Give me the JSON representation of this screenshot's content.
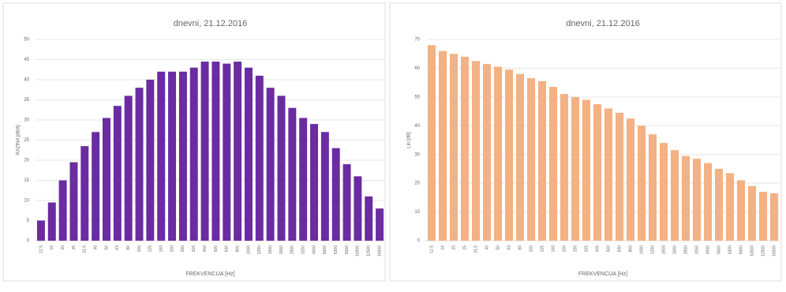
{
  "chart_data": [
    {
      "type": "bar",
      "title": "dnevni, 21.12.2016",
      "x_label": "FREKVENCIJA [Hz]",
      "y_label": "RAZINA [dBA]",
      "color": "#6a2ca0",
      "grid": true,
      "categories": [
        "12.5",
        "16",
        "20",
        "25",
        "31.5",
        "40",
        "50",
        "63",
        "80",
        "100",
        "125",
        "160",
        "200",
        "250",
        "315",
        "400",
        "500",
        "630",
        "800",
        "1000",
        "1250",
        "1600",
        "2000",
        "2500",
        "3150",
        "4000",
        "5000",
        "6300",
        "8000",
        "10000",
        "12500",
        "16000"
      ],
      "values": [
        5,
        9.5,
        15,
        19.5,
        23.5,
        27,
        30.5,
        33.5,
        36,
        38,
        40,
        42,
        42,
        42,
        43,
        44.5,
        44.5,
        44,
        44.5,
        43,
        41,
        38,
        36,
        33,
        30.5,
        29,
        27,
        23,
        19,
        16,
        11,
        8
      ],
      "ylim": [
        0,
        50
      ],
      "yticks": [
        0,
        5,
        10,
        15,
        20,
        25,
        30,
        35,
        40,
        45,
        50
      ]
    },
    {
      "type": "bar",
      "title": "dnevni, 21.12.2016",
      "x_label": "FREKVENCIJA [Hz]",
      "y_label": "Lin [dB]",
      "color": "#f4b183",
      "grid": true,
      "categories": [
        "12.5",
        "16",
        "20",
        "25",
        "31.5",
        "40",
        "50",
        "63",
        "80",
        "100",
        "125",
        "160",
        "200",
        "250",
        "315",
        "400",
        "500",
        "630",
        "800",
        "1000",
        "1250",
        "1600",
        "2000",
        "2500",
        "3150",
        "4000",
        "5000",
        "6300",
        "8000",
        "10000",
        "12500",
        "16000"
      ],
      "values": [
        68,
        66,
        65,
        64,
        62.5,
        61.5,
        60.5,
        59.5,
        58,
        56.5,
        55.5,
        53.5,
        51,
        50,
        49,
        47.5,
        46,
        44.5,
        42.5,
        40,
        37,
        34,
        31.5,
        29.5,
        28.5,
        27,
        25,
        23.5,
        21,
        19,
        17,
        16.5
      ],
      "ylim": [
        0,
        70
      ],
      "yticks": [
        0,
        10,
        20,
        30,
        40,
        50,
        60,
        70
      ]
    }
  ]
}
